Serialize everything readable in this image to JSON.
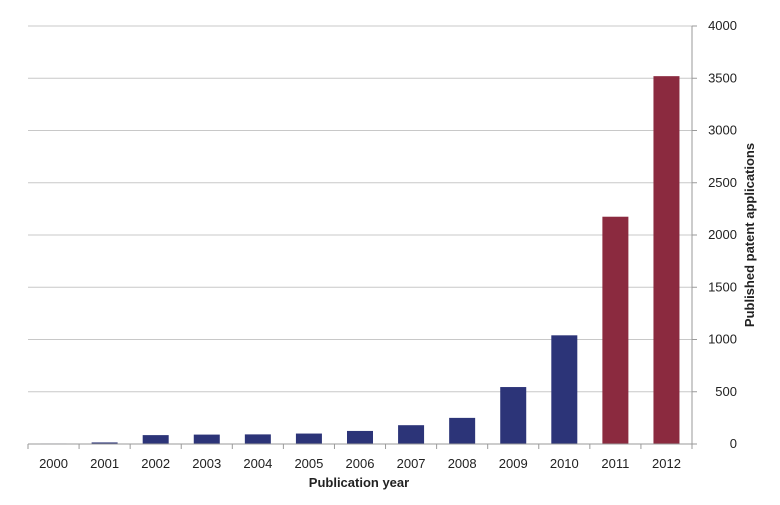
{
  "chart_data": {
    "type": "bar",
    "categories": [
      "2000",
      "2001",
      "2002",
      "2003",
      "2004",
      "2005",
      "2006",
      "2007",
      "2008",
      "2009",
      "2010",
      "2011",
      "2012"
    ],
    "values": [
      5,
      15,
      85,
      90,
      92,
      100,
      125,
      180,
      250,
      545,
      1040,
      2175,
      3520
    ],
    "bar_colors": [
      "#2c3478",
      "#2c3478",
      "#2c3478",
      "#2c3478",
      "#2c3478",
      "#2c3478",
      "#2c3478",
      "#2c3478",
      "#2c3478",
      "#2c3478",
      "#2c3478",
      "#8b2a3f",
      "#8b2a3f"
    ],
    "title": "",
    "xlabel": "Publication year",
    "ylabel": "Published patent applications",
    "ylim": [
      0,
      4000
    ],
    "yticks": [
      0,
      500,
      1000,
      1500,
      2000,
      2500,
      3000,
      3500,
      4000
    ],
    "y_axis_side": "right",
    "grid": true,
    "legend": "none"
  },
  "colors": {
    "series_primary": "#2c3478",
    "series_highlight": "#8b2a3f",
    "gridline": "#c8c8c8",
    "axis": "#9a9a9a"
  }
}
